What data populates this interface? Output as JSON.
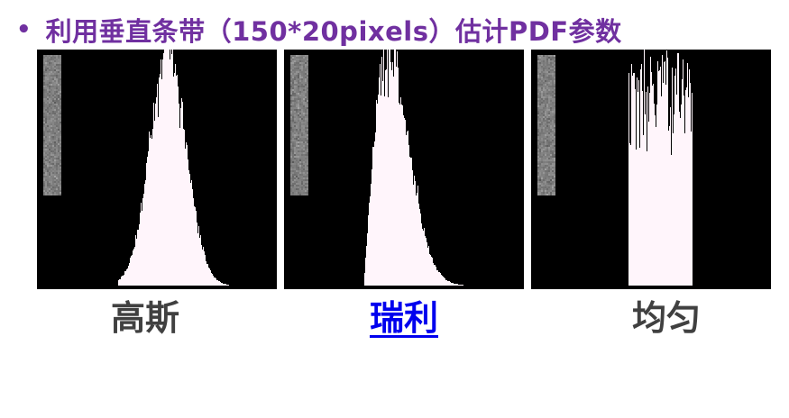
{
  "slide": {
    "bullet": "•",
    "title": "利用垂直条带（150*20pixels）估计PDF参数"
  },
  "panels": [
    {
      "caption": "高斯",
      "distribution": "gaussian",
      "is_link": false
    },
    {
      "caption": "瑞利",
      "distribution": "rayleigh",
      "is_link": true
    },
    {
      "caption": "均匀",
      "distribution": "uniform",
      "is_link": false
    }
  ],
  "colors": {
    "title": "#7030a0",
    "caption": "#404040",
    "link": "#0000ee",
    "histogram_fill": "#fff5fb",
    "panel_bg": "#000000",
    "strip": "#7a7a7a"
  },
  "icons": {
    "bullet": "bullet-dot-icon"
  }
}
